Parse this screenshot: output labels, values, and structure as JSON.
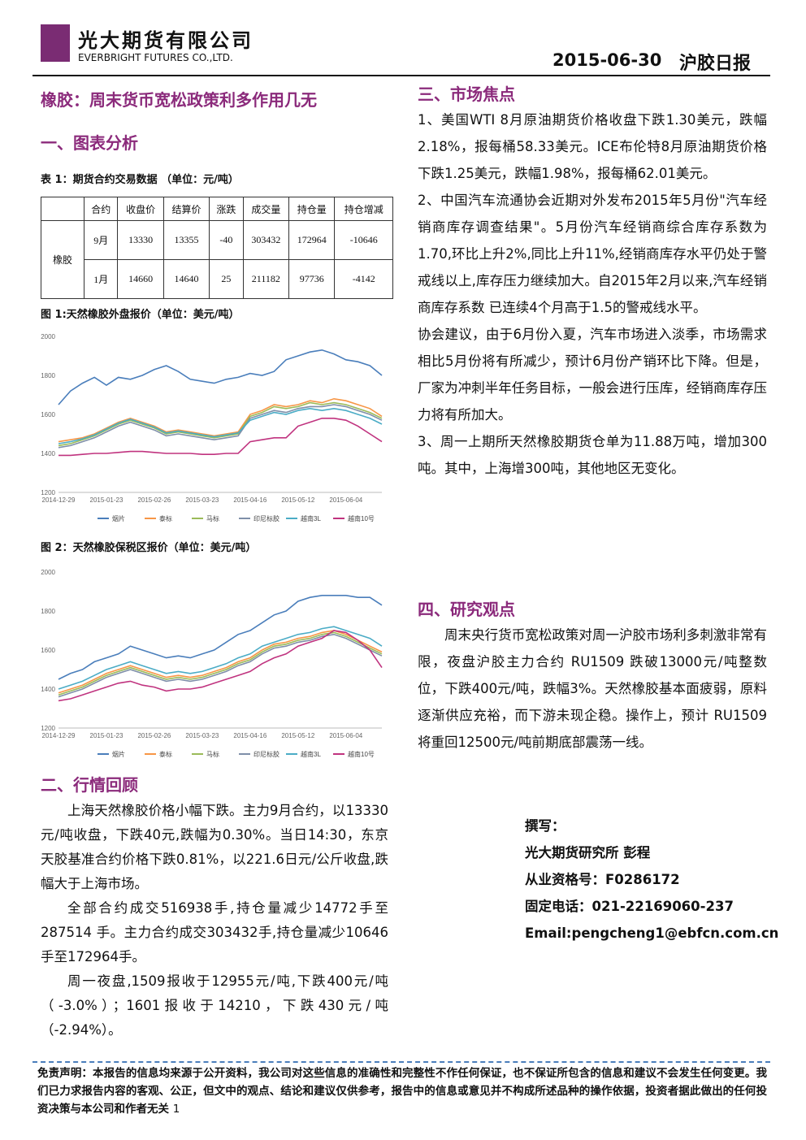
{
  "header": {
    "company_cn": "光大期货有限公司",
    "company_en": "EVERBRIGHT FUTURES CO.,LTD.",
    "date": "2015-06-30",
    "report": "沪胶日报"
  },
  "title": "橡胶：周末货币宽松政策利多作用几无",
  "section1": "一、图表分析",
  "table": {
    "caption": "表 1：期货合约交易数据 （单位：元/吨）",
    "header": [
      "合约",
      "收盘价",
      "结算价",
      "涨跌",
      "成交量",
      "持仓量",
      "持仓增减"
    ],
    "group": "橡胶",
    "rows": [
      [
        "9月",
        "13330",
        "13355",
        "-40",
        "303432",
        "172964",
        "-10646"
      ],
      [
        "1月",
        "14660",
        "14640",
        "25",
        "211182",
        "97736",
        "-4142"
      ]
    ]
  },
  "chart_data": [
    {
      "type": "line",
      "title": "图 1:天然橡胶外盘报价（单位：美元/吨）",
      "categories": [
        "2014-12-29",
        null,
        null,
        null,
        "2015-01-23",
        null,
        null,
        null,
        "2015-02-26",
        null,
        null,
        null,
        "2015-03-23",
        null,
        null,
        null,
        "2015-04-16",
        null,
        null,
        null,
        "2015-05-12",
        null,
        null,
        null,
        "2015-06-04",
        null,
        null,
        null
      ],
      "ylim": [
        1200,
        2000
      ],
      "yticks": [
        1200,
        1400,
        1600,
        1800,
        2000
      ],
      "grid": false,
      "series": [
        {
          "name": "烟片",
          "color": "#4a7ebb",
          "values": [
            1650,
            1720,
            1760,
            1790,
            1750,
            1790,
            1780,
            1800,
            1830,
            1850,
            1820,
            1780,
            1770,
            1760,
            1780,
            1790,
            1810,
            1800,
            1820,
            1880,
            1900,
            1920,
            1930,
            1910,
            1880,
            1870,
            1850,
            1800
          ]
        },
        {
          "name": "泰标",
          "color": "#f79646",
          "values": [
            1460,
            1470,
            1480,
            1500,
            1530,
            1560,
            1580,
            1560,
            1540,
            1510,
            1520,
            1510,
            1500,
            1490,
            1500,
            1510,
            1600,
            1620,
            1650,
            1640,
            1650,
            1670,
            1660,
            1680,
            1670,
            1650,
            1630,
            1590
          ]
        },
        {
          "name": "马标",
          "color": "#9bbb59",
          "values": [
            1440,
            1450,
            1470,
            1490,
            1520,
            1550,
            1570,
            1550,
            1530,
            1500,
            1510,
            1500,
            1490,
            1480,
            1490,
            1500,
            1590,
            1610,
            1640,
            1630,
            1640,
            1660,
            1650,
            1660,
            1650,
            1630,
            1610,
            1580
          ]
        },
        {
          "name": "印尼标胶",
          "color": "#7f8fa9",
          "values": [
            1430,
            1440,
            1460,
            1480,
            1510,
            1540,
            1560,
            1540,
            1520,
            1490,
            1500,
            1490,
            1480,
            1470,
            1480,
            1490,
            1580,
            1600,
            1620,
            1610,
            1630,
            1640,
            1640,
            1650,
            1640,
            1620,
            1600,
            1570
          ]
        },
        {
          "name": "越南3L",
          "color": "#4bacc6",
          "values": [
            1450,
            1460,
            1475,
            1495,
            1525,
            1555,
            1575,
            1555,
            1535,
            1505,
            1515,
            1505,
            1495,
            1485,
            1495,
            1505,
            1570,
            1590,
            1610,
            1600,
            1620,
            1630,
            1620,
            1630,
            1620,
            1600,
            1580,
            1550
          ]
        },
        {
          "name": "越南10号",
          "color": "#c0337f",
          "values": [
            1390,
            1390,
            1395,
            1400,
            1400,
            1405,
            1410,
            1410,
            1405,
            1400,
            1400,
            1400,
            1395,
            1395,
            1400,
            1400,
            1460,
            1470,
            1480,
            1480,
            1540,
            1560,
            1580,
            1580,
            1570,
            1540,
            1500,
            1460
          ]
        }
      ]
    },
    {
      "type": "line",
      "title": "图 2：天然橡胶保税区报价（单位：美元/吨）",
      "categories": [
        "2014-12-29",
        null,
        null,
        null,
        "2015-01-23",
        null,
        null,
        null,
        "2015-02-26",
        null,
        null,
        null,
        "2015-03-23",
        null,
        null,
        null,
        "2015-04-16",
        null,
        null,
        null,
        "2015-05-12",
        null,
        null,
        null,
        "2015-06-04",
        null,
        null,
        null
      ],
      "ylim": [
        1200,
        2000
      ],
      "yticks": [
        1200,
        1400,
        1600,
        1800,
        2000
      ],
      "grid": false,
      "series": [
        {
          "name": "烟片",
          "color": "#4a7ebb",
          "values": [
            1450,
            1480,
            1500,
            1540,
            1560,
            1580,
            1620,
            1600,
            1580,
            1560,
            1570,
            1560,
            1580,
            1600,
            1640,
            1680,
            1700,
            1740,
            1780,
            1800,
            1850,
            1870,
            1880,
            1880,
            1880,
            1870,
            1870,
            1830
          ]
        },
        {
          "name": "泰标",
          "color": "#f79646",
          "values": [
            1380,
            1400,
            1420,
            1450,
            1480,
            1500,
            1520,
            1500,
            1480,
            1460,
            1470,
            1460,
            1470,
            1490,
            1510,
            1540,
            1560,
            1600,
            1630,
            1640,
            1660,
            1670,
            1690,
            1700,
            1680,
            1650,
            1620,
            1590
          ]
        },
        {
          "name": "马标",
          "color": "#9bbb59",
          "values": [
            1370,
            1390,
            1410,
            1440,
            1470,
            1490,
            1510,
            1490,
            1470,
            1450,
            1460,
            1450,
            1460,
            1480,
            1500,
            1530,
            1550,
            1590,
            1620,
            1630,
            1650,
            1660,
            1680,
            1690,
            1670,
            1640,
            1610,
            1580
          ]
        },
        {
          "name": "印尼标胶",
          "color": "#7f8fa9",
          "values": [
            1360,
            1380,
            1400,
            1430,
            1460,
            1480,
            1500,
            1480,
            1460,
            1440,
            1450,
            1440,
            1450,
            1470,
            1490,
            1520,
            1540,
            1580,
            1610,
            1620,
            1640,
            1650,
            1670,
            1680,
            1660,
            1630,
            1600,
            1570
          ]
        },
        {
          "name": "越南3L",
          "color": "#4bacc6",
          "values": [
            1400,
            1420,
            1440,
            1470,
            1500,
            1520,
            1540,
            1520,
            1500,
            1480,
            1490,
            1480,
            1490,
            1510,
            1530,
            1560,
            1580,
            1620,
            1640,
            1660,
            1680,
            1690,
            1710,
            1720,
            1700,
            1680,
            1660,
            1620
          ]
        },
        {
          "name": "越南10号",
          "color": "#c0337f",
          "values": [
            1340,
            1350,
            1370,
            1390,
            1410,
            1430,
            1440,
            1420,
            1410,
            1390,
            1400,
            1400,
            1410,
            1430,
            1450,
            1470,
            1490,
            1530,
            1560,
            1580,
            1620,
            1640,
            1660,
            1700,
            1690,
            1650,
            1600,
            1510
          ]
        }
      ]
    }
  ],
  "section2": "二、行情回顾",
  "review": [
    "上海天然橡胶价格小幅下跌。主力9月合约，以13330元/吨收盘，下跌40元,跌幅为0.30%。当日14:30，东京天胶基准合约价格下跌0.81%，以221.6日元/公斤收盘,跌幅大于上海市场。",
    "全部合约成交516938手,持仓量减少14772手至287514 手。主力合约成交303432手,持仓量减少10646手至172964手。",
    "周一夜盘,1509报收于12955元/吨,下跌400元/吨（-3.0%）；1601报收于14210，下跌430元/吨（-2.94%）。"
  ],
  "section3": "三、市场焦点",
  "focus": [
    "1、美国WTI 8月原油期货价格收盘下跌1.30美元，跌幅2.18%，报每桶58.33美元。ICE布伦特8月原油期货价格下跌1.25美元，跌幅1.98%，报每桶62.01美元。",
    "2、中国汽车流通协会近期对外发布2015年5月份\"汽车经销商库存调查结果\"。5月份汽车经销商综合库存系数为 1.70,环比上升2%,同比上升11%,经销商库存水平仍处于警戒线以上,库存压力继续加大。自2015年2月以来,汽车经销商库存系数 已连续4个月高于1.5的警戒线水平。",
    "协会建议，由于6月份入夏，汽车市场进入淡季，市场需求相比5月份将有所减少，预计6月份产销环比下降。但是，厂家为冲刺半年任务目标，一般会进行压库，经销商库存压力将有所加大。",
    "3、周一上期所天然橡胶期货仓单为11.88万吨，增加300吨。其中，上海增300吨，其他地区无变化。"
  ],
  "section4": "四、研究观点",
  "opinion": "周末央行货币宽松政策对周一沪胶市场利多刺激非常有限，夜盘沪胶主力合约 RU1509 跌破13000元/吨整数位，下跌400元/吨，跌幅3%。天然橡胶基本面疲弱，原料逐渐供应充裕，而下游未现企稳。操作上，预计 RU1509 将重回12500元/吨前期底部震荡一线。",
  "author": [
    "撰写：",
    "光大期货研究所 彭程",
    "从业资格号：F0286172",
    "固定电话：021-22169060-237",
    "Email:pengcheng1@ebfcn.com.cn"
  ],
  "disclaimer": "免责声明：本报告的信息均来源于公开资料，我公司对这些信息的准确性和完整性不作任何保证，也不保证所包含的信息和建议不会发生任何变更。我们已力求报告内容的客观、公正，但文中的观点、结论和建议仅供参考，报告中的信息或意见并不构成所述品种的操作依据，投资者据此做出的任何投资决策与本公司和作者无关",
  "page": "1"
}
